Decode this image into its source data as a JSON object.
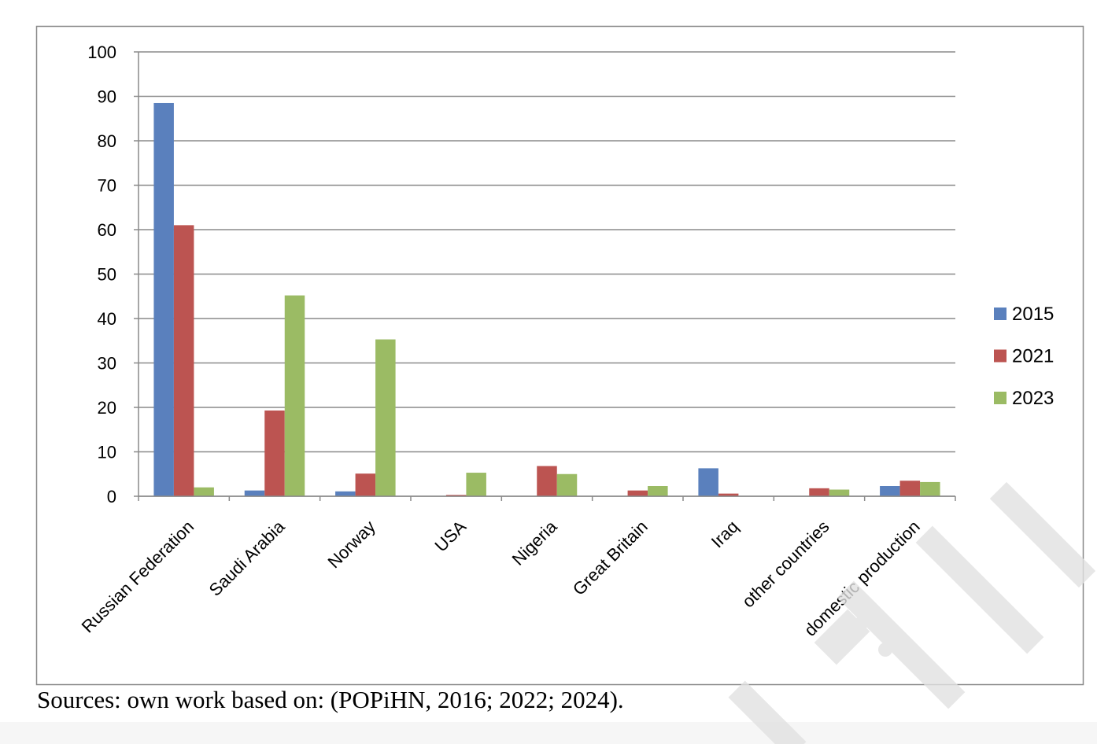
{
  "chart_data": {
    "type": "bar",
    "categories": [
      "Russian Federation",
      "Saudi Arabia",
      "Norway",
      "USA",
      "Nigeria",
      "Great Britain",
      "Iraq",
      "other countries",
      "domestic production"
    ],
    "series": [
      {
        "name": "2015",
        "color": "#5a80bd",
        "values": [
          88.5,
          1.3,
          1.1,
          0,
          0,
          0,
          6.3,
          0,
          2.3
        ]
      },
      {
        "name": "2021",
        "color": "#bc5451",
        "values": [
          61,
          19.3,
          5.1,
          0.3,
          6.8,
          1.3,
          0.6,
          1.8,
          3.5
        ]
      },
      {
        "name": "2023",
        "color": "#9bbb64",
        "values": [
          2,
          45.2,
          35.3,
          5.3,
          5,
          2.3,
          0,
          1.5,
          3.2
        ]
      }
    ],
    "yticks": [
      "0",
      "10",
      "20",
      "30",
      "40",
      "50",
      "60",
      "70",
      "80",
      "90",
      "100"
    ],
    "ylim": [
      0,
      100
    ],
    "grid": true,
    "legend": "right",
    "title": "",
    "xlabel": "",
    "ylabel": ""
  },
  "caption": "Sources: own work based on: (POPiHN, 2016; 2022; 2024).",
  "watermark": "...IAL: ...ONLY"
}
